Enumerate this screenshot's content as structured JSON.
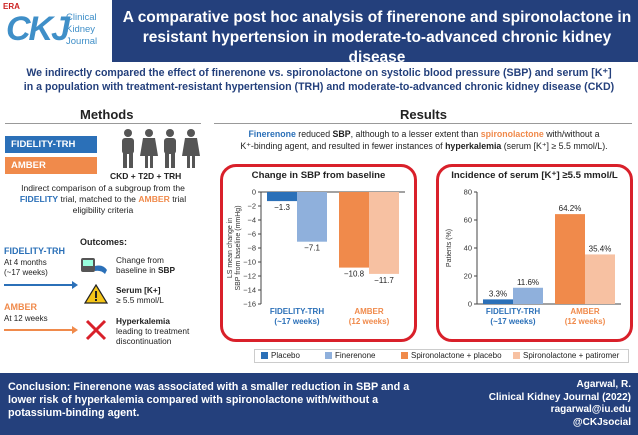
{
  "header": {
    "logo_era": "ERA",
    "logo_mark": "CKJ",
    "logo_lines": [
      "Clinical",
      "Kidney",
      "Journal"
    ],
    "title_line1": "A comparative post hoc analysis of finerenone and spironolactone in",
    "title_line2": "resistant hypertension in moderate-to-advanced chronic kidney disease"
  },
  "intro": {
    "line1": "We indirectly compared the effect of finerenone vs. spironolactone on systolic blood pressure (SBP) and serum [K⁺]",
    "line2": "in a population with treatment-resistant hypertension (TRH) and moderate-to-advanced chronic kidney disease (CKD)"
  },
  "methods": {
    "title": "Methods",
    "pill_fidelity": "FIDELITY-TRH",
    "pill_amber": "AMBER",
    "people_label": "CKD + T2D + TRH",
    "desc_part1": "Indirect comparison of a subgroup from the",
    "desc_fidelity": "FIDELITY",
    "desc_part2": "trial, matched to the",
    "desc_amber": "AMBER",
    "desc_part3": "trial eligibility criteria",
    "timeline": {
      "fidelity_name": "FIDELITY-TRH",
      "fidelity_when1": "At 4 months",
      "fidelity_when2": "(~17 weeks)",
      "amber_name": "AMBER",
      "amber_when": "At 12 weeks"
    },
    "outcomes_title": "Outcomes:",
    "outcome1_line1": "Change from",
    "outcome1_line2a": "baseline in ",
    "outcome1_line2b": "SBP",
    "outcome2_line1": "Serum [K+]",
    "outcome2_line2": "≥ 5.5 mmol/L",
    "outcome3_line1": "Hyperkalemia",
    "outcome3_line2": "leading to treatment",
    "outcome3_line3": "discontinuation"
  },
  "results": {
    "title": "Results",
    "s_fin": "Finerenone",
    "s_1": " reduced ",
    "s_sbp": "SBP",
    "s_2": ", although to a lesser extent than ",
    "s_spi": "spironolactone",
    "s_3": " with/without a",
    "s_4": "K⁺-binding agent, and resulted in fewer instances of ",
    "s_hyper": "hyperkalemia",
    "s_5": " (serum [K⁺] ≥ 5.5 mmol/L)."
  },
  "legend": {
    "placebo": "Placebo",
    "finerenone": "Finerenone",
    "spiro_placebo": "Spironolactone + placebo",
    "spiro_patiromer": "Spironolactone + patiromer"
  },
  "colors": {
    "placebo": "#2b70b8",
    "finerenone": "#8fb0dc",
    "spiro_placebo": "#f08a4b",
    "spiro_patiromer": "#f7c1a2",
    "highlight": "#d9202a",
    "navy": "#24407c"
  },
  "chart_data": [
    {
      "type": "bar",
      "title": "Change in SBP from baseline",
      "ylabel": "LS mean change in SBP from baseline (mmHg)",
      "ylim": [
        -16,
        0
      ],
      "yticks": [
        0,
        -2,
        -4,
        -6,
        -8,
        -10,
        -12,
        -14,
        -16
      ],
      "groups": [
        {
          "label_line1": "FIDELITY-TRH",
          "label_line2": "(~17 weeks)",
          "bars": [
            {
              "series": "Placebo",
              "value": -1.3,
              "label": "−1.3"
            },
            {
              "series": "Finerenone",
              "value": -7.1,
              "label": "−7.1"
            }
          ]
        },
        {
          "label_line1": "AMBER",
          "label_line2": "(12 weeks)",
          "bars": [
            {
              "series": "Spironolactone + placebo",
              "value": -10.8,
              "label": "−10.8"
            },
            {
              "series": "Spironolactone + patiromer",
              "value": -11.7,
              "label": "−11.7"
            }
          ]
        }
      ]
    },
    {
      "type": "bar",
      "title": "Incidence of serum [K⁺] ≥5.5 mmol/L",
      "ylabel": "Patients (%)",
      "ylim": [
        0,
        80
      ],
      "yticks": [
        0,
        20,
        40,
        60,
        80
      ],
      "groups": [
        {
          "label_line1": "FIDELITY-TRH",
          "label_line2": "(~17 weeks)",
          "bars": [
            {
              "series": "Placebo",
              "value": 3.3,
              "label": "3.3%"
            },
            {
              "series": "Finerenone",
              "value": 11.6,
              "label": "11.6%"
            }
          ]
        },
        {
          "label_line1": "AMBER",
          "label_line2": "(12 weeks)",
          "bars": [
            {
              "series": "Spironolactone + placebo",
              "value": 64.2,
              "label": "64.2%"
            },
            {
              "series": "Spironolactone + patiromer",
              "value": 35.4,
              "label": "35.4%"
            }
          ]
        }
      ]
    }
  ],
  "footer": {
    "conclusion_label": "Conclusion:",
    "conclusion_text": " Finerenone was associated with a smaller reduction in SBP and a lower risk of hyperkalemia compared with spironolactone with/without a potassium-binding agent.",
    "cite_author": "Agarwal, R.",
    "cite_journal": "Clinical Kidney Journal (2022)",
    "cite_email": "ragarwal@iu.edu",
    "cite_handle": "@CKJsocial"
  }
}
